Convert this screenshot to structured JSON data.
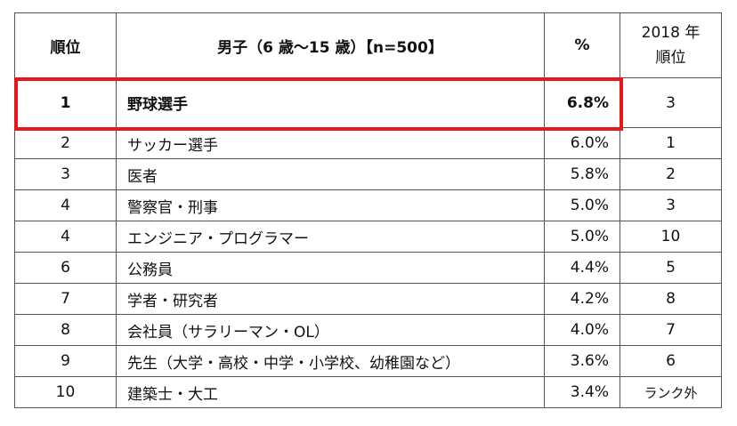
{
  "table": {
    "header": [
      "順位",
      "男子（6 歳～15 歳）【n=500】",
      "%",
      [
        "2018 年",
        "順位"
      ]
    ],
    "rows": [
      [
        "1",
        "野球選手",
        "6.8%",
        "3"
      ],
      [
        "2",
        "サッカー選手",
        "6.0%",
        "1"
      ],
      [
        "3",
        "医者",
        "5.8%",
        "2"
      ],
      [
        "4",
        "警察官・刑事",
        "5.0%",
        "3"
      ],
      [
        "4",
        "エンジニア・プログラマー",
        "5.0%",
        "10"
      ],
      [
        "6",
        "公務員",
        "4.4%",
        "5"
      ],
      [
        "7",
        "学者・研究者",
        "4.2%",
        "8"
      ],
      [
        "8",
        "会社員（サラリーマン・OL）",
        "4.0%",
        "7"
      ],
      [
        "9",
        "先生（大学・高校・中学・小学校、幼稚園など）",
        "3.6%",
        "6"
      ],
      [
        "10",
        "建築士・大工",
        "3.4%",
        "ランク外"
      ]
    ]
  }
}
